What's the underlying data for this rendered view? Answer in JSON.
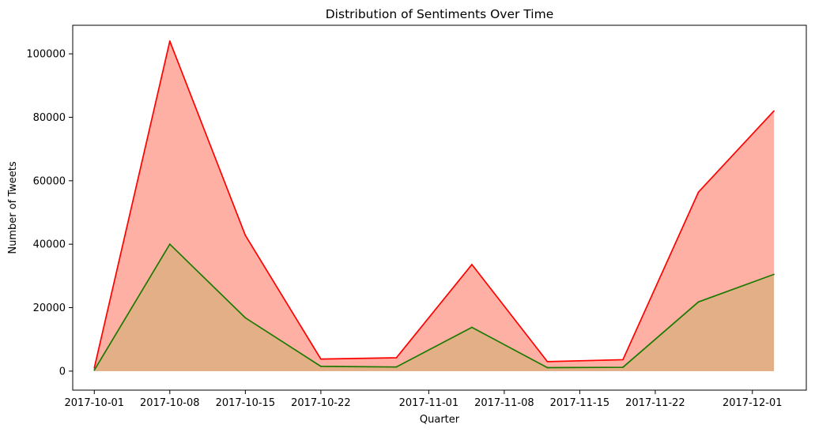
{
  "chart_data": {
    "type": "area",
    "title": "Distribution of Sentiments Over Time",
    "xlabel": "Quarter",
    "ylabel": "Number of Tweets",
    "xlim": [
      "2017-09-29",
      "2017-12-06"
    ],
    "ylim": [
      -6000,
      109000
    ],
    "x_ticks": [
      "2017-10-01",
      "2017-10-08",
      "2017-10-15",
      "2017-10-22",
      "2017-11-01",
      "2017-11-08",
      "2017-11-15",
      "2017-11-22",
      "2017-12-01"
    ],
    "y_ticks": [
      0,
      20000,
      40000,
      60000,
      80000,
      100000
    ],
    "y_tick_labels": [
      "0",
      "20000",
      "40000",
      "60000",
      "80000",
      "100000"
    ],
    "grid": false,
    "x": [
      "2017-10-01",
      "2017-10-08",
      "2017-10-15",
      "2017-10-22",
      "2017-10-29",
      "2017-11-05",
      "2017-11-12",
      "2017-11-19",
      "2017-11-26",
      "2017-12-03"
    ],
    "series": [
      {
        "values": [
          1000,
          104000,
          42800,
          3800,
          4200,
          33600,
          3000,
          3600,
          56400,
          82000
        ],
        "line_color": "#ff0000",
        "fill_color": "#ffb0a4"
      },
      {
        "values": [
          300,
          40000,
          16800,
          1500,
          1300,
          13800,
          1100,
          1200,
          21800,
          30500
        ],
        "line_color": "#1a7a00",
        "fill_color": "#e2af86"
      }
    ]
  }
}
